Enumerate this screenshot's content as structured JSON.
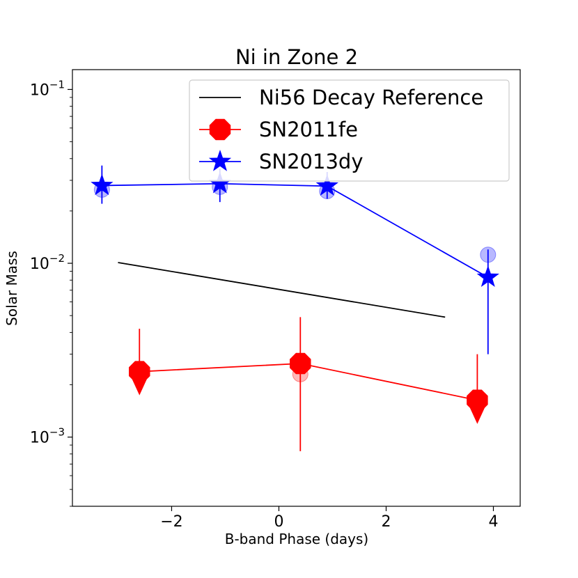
{
  "chart_data": {
    "type": "line",
    "title": "Ni in Zone 2",
    "xlabel": "B-band Phase (days)",
    "ylabel": "Solar Mass",
    "xscale": "linear",
    "yscale": "log",
    "xlim": [
      -3.85,
      4.5
    ],
    "ylim": [
      0.0004,
      0.13
    ],
    "xticks": [
      {
        "value": -2,
        "label": "−2"
      },
      {
        "value": 0,
        "label": "0"
      },
      {
        "value": 2,
        "label": "2"
      },
      {
        "value": 4,
        "label": "4"
      }
    ],
    "yticks": [
      {
        "value": 0.001,
        "base": "10",
        "exp": "−3"
      },
      {
        "value": 0.01,
        "base": "10",
        "exp": "−2"
      },
      {
        "value": 0.1,
        "base": "10",
        "exp": "−1"
      }
    ],
    "legend_position": "top-right",
    "series": [
      {
        "name": "Ni56 Decay Reference",
        "color": "#000000",
        "marker": "none",
        "x": [
          -3.0,
          3.1
        ],
        "y": [
          0.0101,
          0.0049
        ]
      },
      {
        "name": "SN2011fe",
        "color": "#ff0000",
        "marker": "octagon",
        "x": [
          -2.6,
          0.4,
          3.7
        ],
        "y": [
          0.00238,
          0.00265,
          0.00163
        ],
        "err_low": [
          0.0,
          0.00083,
          0.0
        ],
        "err_high": [
          0.0042,
          0.0049,
          0.003
        ],
        "upper_limit": [
          true,
          false,
          true
        ],
        "faded_points": [
          {
            "x": 0.4,
            "y": 0.0023
          }
        ]
      },
      {
        "name": "SN2013dy",
        "color": "#0000ff",
        "marker": "star",
        "x": [
          -3.3,
          -1.1,
          0.9,
          3.9
        ],
        "y": [
          0.028,
          0.0287,
          0.0278,
          0.0083
        ],
        "err_low": [
          0.022,
          0.0225,
          0.0235,
          0.003
        ],
        "err_high": [
          0.0365,
          0.035,
          0.0335,
          0.012
        ],
        "upper_limit": [
          false,
          false,
          false,
          false
        ],
        "faded_points": [
          {
            "x": -3.3,
            "y": 0.0265
          },
          {
            "x": -1.1,
            "y": 0.0275
          },
          {
            "x": 0.9,
            "y": 0.026
          },
          {
            "x": 3.9,
            "y": 0.0112
          }
        ]
      }
    ]
  }
}
